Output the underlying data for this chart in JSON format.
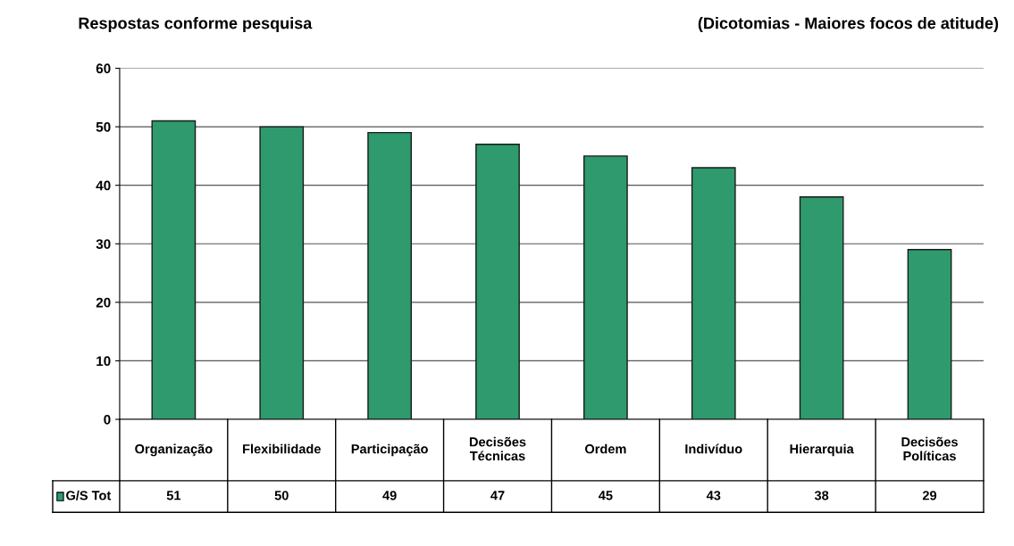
{
  "chart_data": {
    "type": "bar",
    "title": "Respostas conforme pesquisa",
    "subtitle": "(Dicotomias - Maiores focos de atitude)",
    "categories": [
      "Organização",
      "Flexibilidade",
      "Participação",
      "Decisões\nTécnicas",
      "Ordem",
      "Indivíduo",
      "Hierarquia",
      "Decisões\nPolíticas"
    ],
    "series": [
      {
        "name": "G/S Tot",
        "color": "#2e9a6e",
        "values": [
          51,
          50,
          49,
          47,
          45,
          43,
          38,
          29
        ]
      }
    ],
    "ylim": [
      0,
      60
    ],
    "yticks": [
      0,
      10,
      20,
      30,
      40,
      50,
      60
    ],
    "grid": "y",
    "data_labels": true,
    "legend": "bottom left"
  }
}
